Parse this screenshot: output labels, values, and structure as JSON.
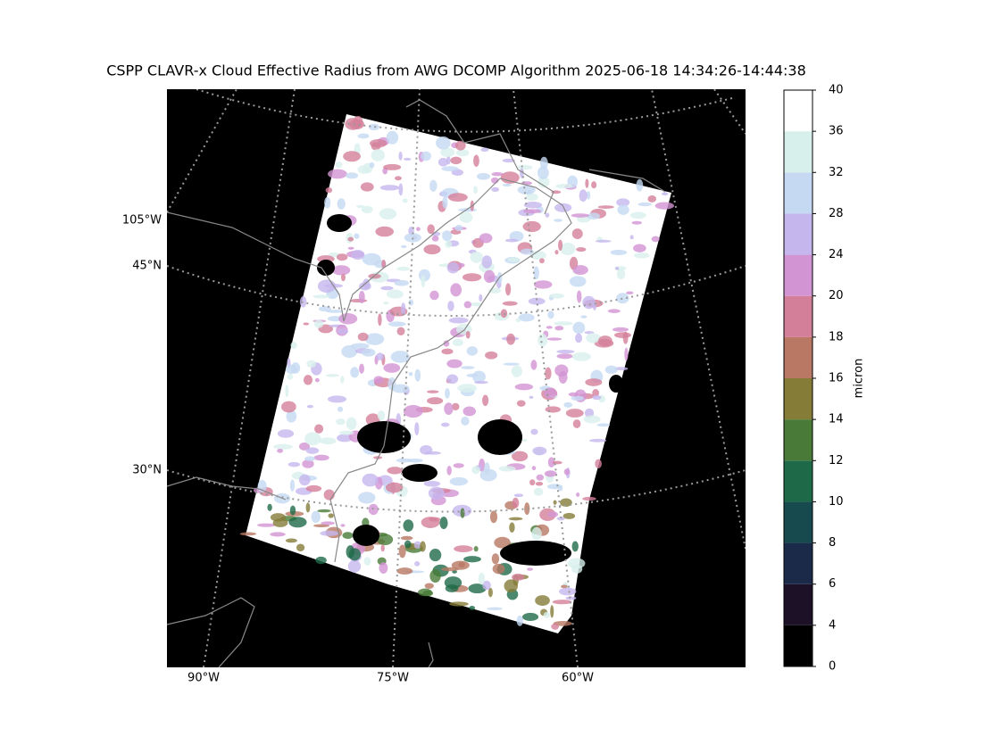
{
  "title": "CSPP CLAVR-x Cloud Effective Radius from AWG DCOMP Algorithm 2025-06-18 14:34:26-14:44:38",
  "map": {
    "lat_labels": [
      "45°N",
      "30°N"
    ],
    "lon_labels_left": [
      "105°W"
    ],
    "lon_labels_bottom": [
      "90°W",
      "75°W",
      "60°W"
    ]
  },
  "colorbar": {
    "label": "micron",
    "ticks": [
      0,
      4,
      6,
      8,
      10,
      12,
      14,
      16,
      18,
      20,
      24,
      28,
      32,
      36,
      40
    ],
    "colors": [
      "#000000",
      "#1d1128",
      "#1c2a4a",
      "#174a4e",
      "#1e6a48",
      "#497a37",
      "#857c38",
      "#b87864",
      "#d47f9a",
      "#d394d4",
      "#c5b6ee",
      "#c5d9f3",
      "#d8f0ec",
      "#ffffff"
    ]
  }
}
